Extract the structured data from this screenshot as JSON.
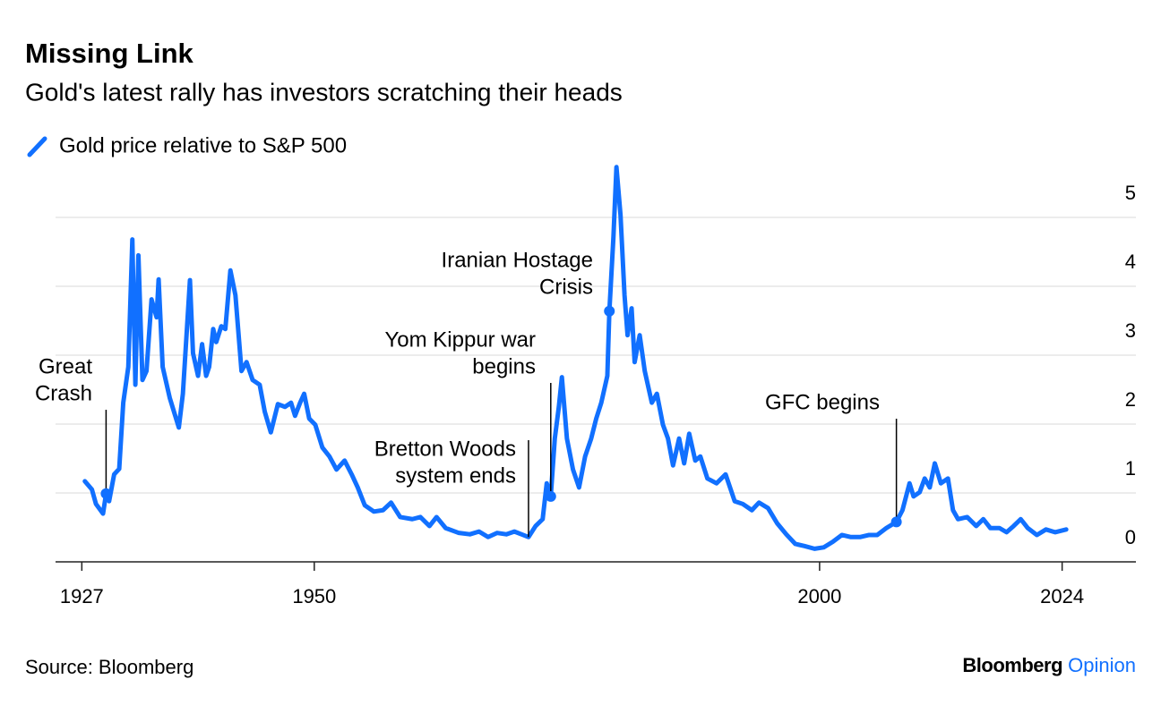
{
  "chart_data": {
    "type": "line",
    "title": "Missing Link",
    "subtitle": "Gold's latest rally has investors scratching their heads",
    "x": [
      1927.3,
      1928.0,
      1928.4,
      1929.1,
      1929.4,
      1929.7,
      1930.2,
      1930.7,
      1931.1,
      1931.6,
      1932.0,
      1932.3,
      1932.6,
      1933.0,
      1933.4,
      1933.9,
      1934.4,
      1934.6,
      1935.0,
      1935.7,
      1936.6,
      1937.0,
      1937.7,
      1938.0,
      1938.5,
      1938.9,
      1939.3,
      1939.6,
      1940.0,
      1940.3,
      1940.8,
      1941.2,
      1941.7,
      1942.2,
      1942.8,
      1943.3,
      1943.9,
      1944.6,
      1945.1,
      1945.7,
      1946.4,
      1947.1,
      1947.7,
      1948.1,
      1948.6,
      1949.0,
      1949.5,
      1950.1,
      1950.8,
      1951.5,
      1952.2,
      1953.0,
      1953.7,
      1954.3,
      1955.0,
      1955.9,
      1956.8,
      1957.6,
      1958.5,
      1959.7,
      1960.5,
      1961.4,
      1962.1,
      1963.0,
      1964.3,
      1965.4,
      1966.3,
      1967.2,
      1968.1,
      1969.0,
      1969.8,
      1970.5,
      1971.2,
      1971.9,
      1972.6,
      1973.0,
      1973.4,
      1973.8,
      1974.2,
      1974.5,
      1975.0,
      1975.6,
      1976.2,
      1976.8,
      1977.4,
      1977.9,
      1978.4,
      1979.0,
      1979.2,
      1979.6,
      1979.9,
      1980.3,
      1980.7,
      1981.0,
      1981.4,
      1981.7,
      1982.2,
      1982.7,
      1983.4,
      1983.9,
      1984.5,
      1985.0,
      1985.5,
      1986.1,
      1986.6,
      1987.1,
      1987.7,
      1988.2,
      1988.9,
      1989.8,
      1990.7,
      1991.6,
      1992.4,
      1993.3,
      1994.0,
      1994.9,
      1995.8,
      1996.7,
      1997.6,
      1998.5,
      1999.5,
      2000.4,
      2001.3,
      2002.2,
      2003.1,
      2004.0,
      2004.9,
      2005.7,
      2006.6,
      2007.6,
      2008.2,
      2008.9,
      2009.3,
      2009.9,
      2010.4,
      2010.9,
      2011.4,
      2012.0,
      2012.7,
      2013.2,
      2013.7,
      2014.6,
      2015.5,
      2016.2,
      2016.9,
      2017.8,
      2018.5,
      2019.2,
      2019.9,
      2020.6,
      2021.5,
      2022.4,
      2023.3,
      2024.4
    ],
    "series": [
      {
        "name": "Gold price relative to S&P 500",
        "color": "#1170ff",
        "values": [
          1.17,
          1.05,
          0.84,
          0.7,
          0.99,
          0.88,
          1.27,
          1.35,
          2.31,
          2.83,
          4.68,
          2.57,
          4.45,
          2.64,
          2.77,
          3.81,
          3.55,
          4.1,
          2.83,
          2.38,
          1.95,
          2.44,
          4.09,
          3.03,
          2.7,
          3.16,
          2.7,
          2.83,
          3.38,
          3.19,
          3.42,
          3.38,
          4.23,
          3.87,
          2.77,
          2.9,
          2.64,
          2.57,
          2.18,
          1.88,
          2.29,
          2.25,
          2.31,
          2.12,
          2.31,
          2.44,
          2.08,
          1.99,
          1.66,
          1.53,
          1.34,
          1.47,
          1.27,
          1.08,
          0.82,
          0.73,
          0.75,
          0.86,
          0.65,
          0.62,
          0.65,
          0.52,
          0.65,
          0.49,
          0.42,
          0.4,
          0.44,
          0.36,
          0.42,
          0.4,
          0.44,
          0.4,
          0.36,
          0.52,
          0.62,
          1.14,
          0.95,
          1.79,
          2.25,
          2.68,
          1.79,
          1.34,
          1.08,
          1.53,
          1.79,
          2.08,
          2.31,
          2.7,
          3.64,
          4.71,
          5.73,
          5.04,
          3.87,
          3.29,
          3.68,
          2.9,
          3.29,
          2.77,
          2.31,
          2.44,
          1.99,
          1.79,
          1.4,
          1.79,
          1.43,
          1.86,
          1.47,
          1.53,
          1.21,
          1.14,
          1.27,
          0.88,
          0.84,
          0.75,
          0.86,
          0.78,
          0.56,
          0.4,
          0.26,
          0.23,
          0.19,
          0.21,
          0.29,
          0.39,
          0.36,
          0.36,
          0.39,
          0.39,
          0.49,
          0.58,
          0.75,
          1.14,
          0.95,
          1.01,
          1.21,
          1.08,
          1.43,
          1.14,
          1.21,
          0.75,
          0.62,
          0.65,
          0.52,
          0.62,
          0.49,
          0.49,
          0.43,
          0.52,
          0.62,
          0.49,
          0.39,
          0.47,
          0.43,
          0.47
        ]
      }
    ],
    "xlim": [
      1924.4,
      2031.3
    ],
    "xticks": [
      1927,
      1950,
      2000,
      2024
    ],
    "ylim": [
      0,
      5.8
    ],
    "yticks": [
      0,
      1,
      2,
      3,
      4,
      5
    ],
    "grid": true,
    "annotations": [
      {
        "lines": [
          "Great",
          "Crash"
        ],
        "x": 1929.4,
        "y": 0.99,
        "marker": true
      },
      {
        "lines": [
          "Bretton Woods",
          "system ends"
        ],
        "x": 1971.2,
        "y": 0.36,
        "marker": false
      },
      {
        "lines": [
          "Yom Kippur war",
          "begins"
        ],
        "x": 1973.4,
        "y": 0.95,
        "marker": true
      },
      {
        "lines": [
          "Iranian Hostage",
          "Crisis"
        ],
        "x": 1979.2,
        "y": 3.64,
        "marker": true
      },
      {
        "lines": [
          "GFC begins"
        ],
        "x": 2007.6,
        "y": 0.58,
        "marker": true
      }
    ]
  },
  "footer": {
    "source": "Source: Bloomberg",
    "brand": "Bloomberg",
    "section": "Opinion"
  }
}
